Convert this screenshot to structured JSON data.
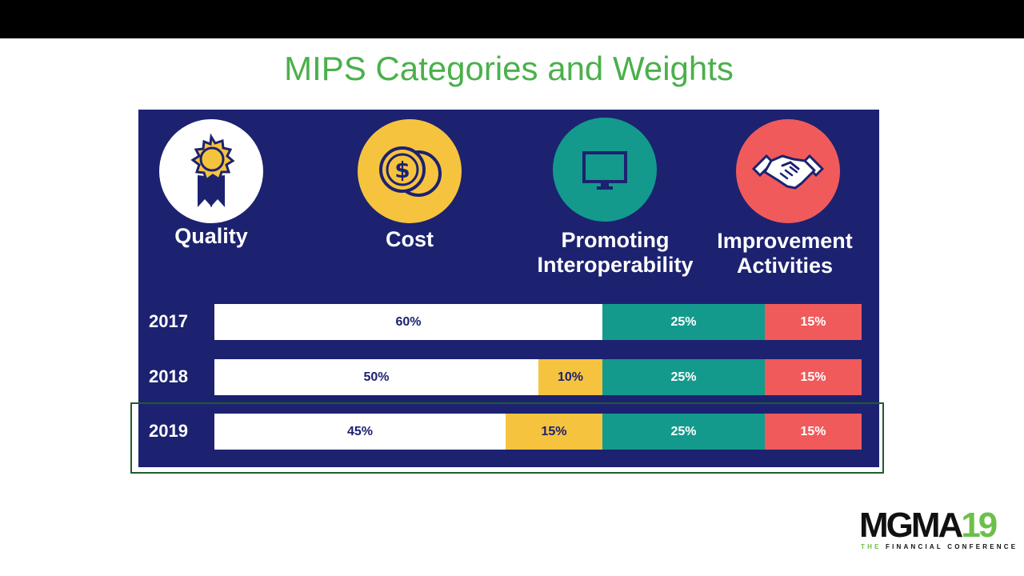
{
  "slide": {
    "title": "MIPS Categories and Weights"
  },
  "categories": [
    {
      "label_lines": [
        "Quality"
      ],
      "icon": "ribbon-medal-icon",
      "circle_color": "#ffffff"
    },
    {
      "label_lines": [
        "Cost"
      ],
      "icon": "coins-dollar-icon",
      "circle_color": "#f6c33e"
    },
    {
      "label_lines": [
        "Promoting",
        "Interoperability"
      ],
      "icon": "monitor-icon",
      "circle_color": "#139a8c"
    },
    {
      "label_lines": [
        "Improvement",
        "Activities"
      ],
      "icon": "handshake-icon",
      "circle_color": "#f15a5b"
    }
  ],
  "chart_data": {
    "type": "bar",
    "orientation": "horizontal-stacked",
    "categories": [
      "2017",
      "2018",
      "2019"
    ],
    "series": [
      {
        "name": "Quality",
        "values": [
          60,
          50,
          45
        ],
        "labels": [
          "60%",
          "50%",
          "45%"
        ],
        "color": "#ffffff"
      },
      {
        "name": "Cost",
        "values": [
          0,
          10,
          15
        ],
        "labels": [
          "",
          "10%",
          "15%"
        ],
        "color": "#f6c33e"
      },
      {
        "name": "Promoting Interoperability",
        "values": [
          25,
          25,
          25
        ],
        "labels": [
          "25%",
          "25%",
          "25%"
        ],
        "color": "#139a8c"
      },
      {
        "name": "Improvement Activities",
        "values": [
          15,
          15,
          15
        ],
        "labels": [
          "15%",
          "15%",
          "15%"
        ],
        "color": "#f15a5b"
      }
    ],
    "xlim": [
      0,
      100
    ],
    "highlighted_category": "2019"
  },
  "logo": {
    "main": "MGMA",
    "number": "19",
    "tagline_prefix": "THE",
    "tagline": "FINANCIAL CONFERENCE"
  },
  "colors": {
    "title": "#4bb04b",
    "panel": "#1c2270",
    "highlight_border": "#1f5d2a",
    "label_dark": "#1c2270",
    "label_light": "#ffffff"
  }
}
